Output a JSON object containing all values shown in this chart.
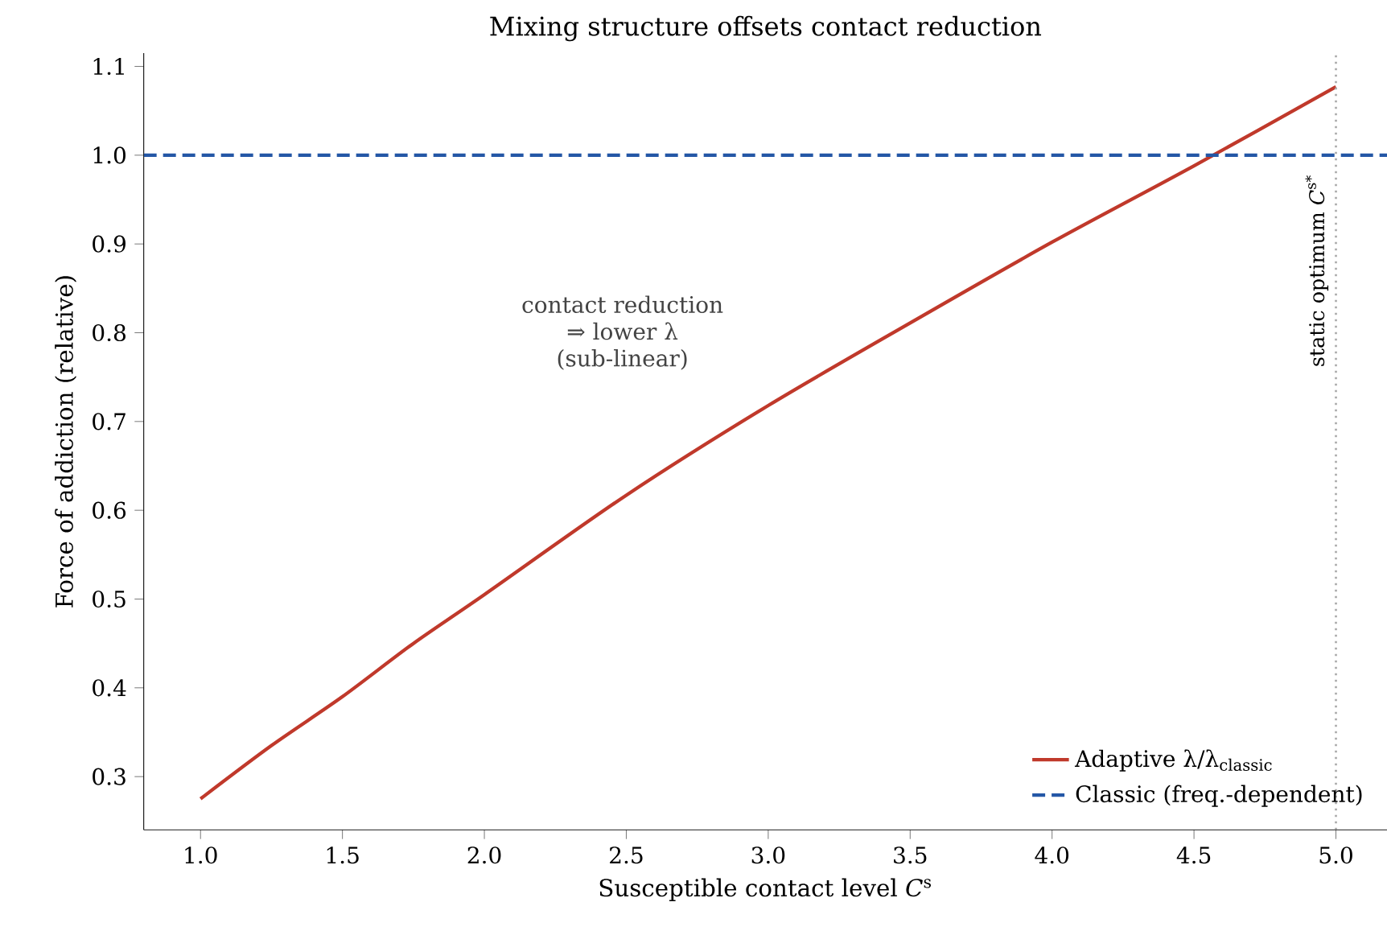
{
  "chart_data": {
    "type": "line",
    "title": "Mixing structure offsets contact reduction",
    "xlabel": "Susceptible contact level *C*$^{s}$",
    "ylabel": "Force of addiction (relative)",
    "xlim": [
      0.8,
      5.18
    ],
    "ylim": [
      0.24,
      1.115
    ],
    "xticks": [
      {
        "value": 1.0,
        "label": "1.0"
      },
      {
        "value": 1.5,
        "label": "1.5"
      },
      {
        "value": 2.0,
        "label": "2.0"
      },
      {
        "value": 2.5,
        "label": "2.5"
      },
      {
        "value": 3.0,
        "label": "3.0"
      },
      {
        "value": 3.5,
        "label": "3.5"
      },
      {
        "value": 4.0,
        "label": "4.0"
      },
      {
        "value": 4.5,
        "label": "4.5"
      },
      {
        "value": 5.0,
        "label": "5.0"
      }
    ],
    "yticks": [
      {
        "value": 0.3,
        "label": "0.3"
      },
      {
        "value": 0.4,
        "label": "0.4"
      },
      {
        "value": 0.5,
        "label": "0.5"
      },
      {
        "value": 0.6,
        "label": "0.6"
      },
      {
        "value": 0.7,
        "label": "0.7"
      },
      {
        "value": 0.8,
        "label": "0.8"
      },
      {
        "value": 0.9,
        "label": "0.9"
      },
      {
        "value": 1.0,
        "label": "1.0"
      },
      {
        "value": 1.1,
        "label": "1.1"
      }
    ],
    "series": [
      {
        "name": "Adaptive λ/λ$_{classic}$",
        "color": "#c0392b",
        "line_style": "solid",
        "x": [
          1.0,
          1.25,
          1.5,
          1.75,
          2.0,
          2.5,
          3.0,
          3.5,
          4.0,
          4.5,
          5.0
        ],
        "values": [
          0.275,
          0.335,
          0.39,
          0.45,
          0.505,
          0.617,
          0.718,
          0.811,
          0.902,
          0.988,
          1.077
        ]
      },
      {
        "name": "Classic (freq.-dependent)",
        "color": "#2457a6",
        "line_style": "dashed",
        "x": [
          0.8,
          5.18
        ],
        "values": [
          1.0,
          1.0
        ]
      }
    ],
    "ref_lines": [
      {
        "axis": "x",
        "value": 5.0,
        "label": "static optimum *C*$^{s*}$",
        "color": "#aaaaaa",
        "line_style": "dotted"
      }
    ],
    "annotations": [
      "contact reduction",
      "⇒ lower λ",
      "(sub-linear)"
    ],
    "grid": false,
    "legend": "bottom right",
    "marker": "none"
  }
}
